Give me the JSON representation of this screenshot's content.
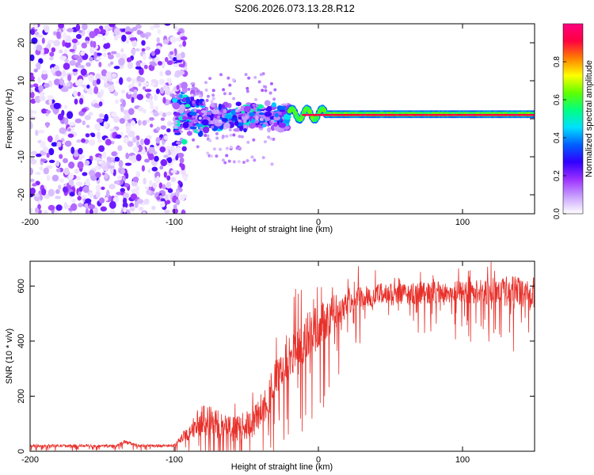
{
  "title": "S206.2026.073.13.28.R12",
  "chart_data": [
    {
      "type": "heatmap",
      "xlabel": "Height of straight line (km)",
      "ylabel": "Frequency (Hz)",
      "xlim": [
        -200,
        150
      ],
      "ylim": [
        -25,
        25
      ],
      "xticks": [
        -200,
        -100,
        0,
        100
      ],
      "xtick_labels": [
        "-200",
        "-100",
        "0",
        "100"
      ],
      "yticks": [
        -20,
        -10,
        0,
        10,
        20
      ],
      "ytick_labels": [
        "-20",
        "-10",
        "0",
        "10",
        "20"
      ],
      "colorbar": {
        "label": "Normalized spectral amplitude",
        "range": [
          0,
          1
        ],
        "ticks": [
          0,
          0.2,
          0.4,
          0.6,
          0.8
        ],
        "tick_labels": [
          "0.0",
          "0.2",
          "0.4",
          "0.6",
          "0.8"
        ],
        "colormap": [
          "#ffffff",
          "#c8a0ff",
          "#9b30ff",
          "#3000ff",
          "#0060ff",
          "#00e0ff",
          "#00ff80",
          "#60ff00",
          "#ffff00",
          "#ff8000",
          "#ff0040",
          "#ff0080"
        ]
      },
      "segments": [
        {
          "region": "noise",
          "x": [
            -200,
            -100
          ],
          "freq_spread": 25,
          "peak_amplitude": 0.25
        },
        {
          "region": "scintillation",
          "x": [
            -100,
            -20
          ],
          "center_freq": 0.5,
          "freq_spread": 3,
          "peak_amplitude": 0.45
        },
        {
          "region": "carrier",
          "x": [
            -20,
            150
          ],
          "center_freq": 1.2,
          "freq_spread": 0.8,
          "peak_amplitude": 0.95
        }
      ]
    },
    {
      "type": "line",
      "xlabel": "Height of straight line (km)",
      "ylabel": "SNR (10 * v/v)",
      "xlim": [
        -200,
        150
      ],
      "ylim": [
        0,
        690
      ],
      "xticks": [
        -200,
        -100,
        0,
        100
      ],
      "xtick_labels": [
        "-200",
        "-100",
        "0",
        "100"
      ],
      "yticks": [
        0,
        200,
        400,
        600
      ],
      "ytick_labels": [
        "0",
        "200",
        "400",
        "600"
      ],
      "color": "#e8302a",
      "envelope": {
        "x": [
          -200,
          -140,
          -135,
          -125,
          -100,
          -90,
          -80,
          -60,
          -45,
          -35,
          -25,
          -15,
          -5,
          5,
          15,
          25,
          40,
          60,
          100,
          130,
          150
        ],
        "base": [
          20,
          20,
          35,
          20,
          20,
          70,
          120,
          80,
          100,
          200,
          300,
          370,
          430,
          480,
          520,
          560,
          570,
          570,
          580,
          580,
          580
        ],
        "amp": [
          10,
          10,
          15,
          10,
          10,
          60,
          120,
          90,
          110,
          150,
          150,
          180,
          180,
          150,
          120,
          90,
          80,
          80,
          80,
          110,
          120
        ]
      }
    }
  ]
}
